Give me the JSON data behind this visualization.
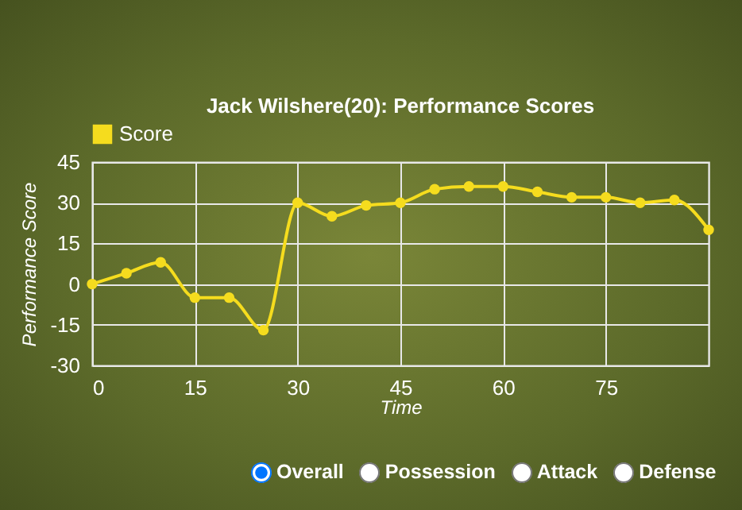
{
  "chart_data": {
    "type": "line",
    "title": "Jack Wilshere(20): Performance Scores",
    "xlabel": "Time",
    "ylabel": "Performance Score",
    "x": [
      0,
      5,
      10,
      15,
      20,
      25,
      30,
      35,
      40,
      45,
      50,
      55,
      60,
      65,
      70,
      75,
      80,
      85,
      90
    ],
    "series": [
      {
        "name": "Score",
        "color": "#f5dc1e",
        "values": [
          0,
          4,
          8,
          -5,
          -5,
          -17,
          30,
          25,
          29,
          30,
          35,
          36,
          36,
          34,
          32,
          32,
          30,
          31,
          20
        ]
      }
    ],
    "xlim": [
      0,
      90
    ],
    "xticks": [
      0,
      15,
      30,
      45,
      60,
      75
    ],
    "ylim": [
      -30,
      45
    ],
    "yticks": [
      -30,
      -15,
      0,
      15,
      30,
      45
    ],
    "grid": true,
    "legend": "top left",
    "marker": "circle",
    "line_style": "solid",
    "annotations": [
      "Overall",
      "Possession",
      "Attack",
      "Defense"
    ]
  }
}
